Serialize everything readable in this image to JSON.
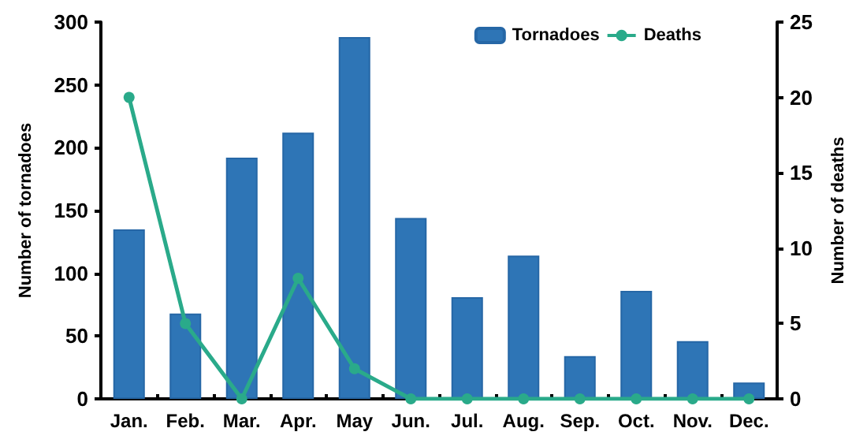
{
  "chart_data": {
    "type": "bar",
    "ylabel": "Number of tornadoes",
    "y2label": "Number of deaths",
    "categories": [
      "Jan.",
      "Feb.",
      "Mar.",
      "Apr.",
      "May",
      "Jun.",
      "Jul.",
      "Aug.",
      "Sep.",
      "Oct.",
      "Nov.",
      "Dec."
    ],
    "series": [
      {
        "name": "Tornadoes",
        "color": "#2e75b6",
        "values": [
          135,
          68,
          192,
          212,
          288,
          144,
          81,
          114,
          34,
          86,
          46,
          13
        ]
      },
      {
        "name": "Deaths",
        "type": "line",
        "axis": "y2",
        "color": "#2aaa8a",
        "marker": "circle",
        "values": [
          20,
          5,
          0,
          8,
          2,
          0,
          0,
          0,
          0,
          0,
          0,
          0
        ]
      }
    ],
    "ylim": [
      0,
      300
    ],
    "yticks": [
      0,
      50,
      100,
      150,
      200,
      250,
      300
    ],
    "y2lim": [
      0,
      25
    ],
    "y2ticks": [
      0,
      5,
      10,
      15,
      20,
      25
    ],
    "grid": false,
    "legend": "top right"
  }
}
